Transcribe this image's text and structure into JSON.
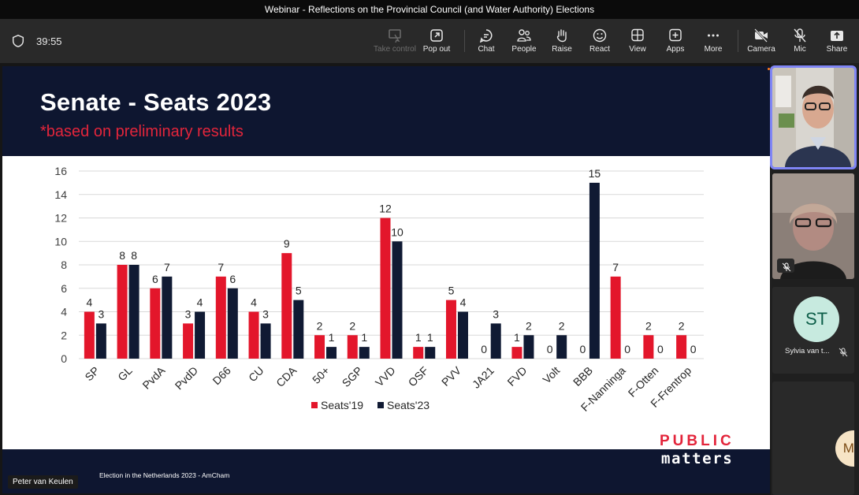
{
  "window": {
    "title": "Webinar - Reflections on the Provincial Council (and Water Authority) Elections"
  },
  "toolbar": {
    "timer": "39:55",
    "buttons": {
      "take_control": "Take control",
      "pop_out": "Pop out",
      "chat": "Chat",
      "people": "People",
      "raise": "Raise",
      "react": "React",
      "view": "View",
      "apps": "Apps",
      "more": "More",
      "camera": "Camera",
      "mic": "Mic",
      "share": "Share"
    },
    "icons": {
      "shield": "shield-icon",
      "take_control": "take-control-icon",
      "pop_out": "pop-out-icon",
      "chat": "chat-icon",
      "people": "people-icon",
      "raise": "hand-icon",
      "react": "smiley-icon",
      "view": "grid-icon",
      "apps": "plus-box-icon",
      "more": "ellipsis-icon",
      "camera": "camera-off-icon",
      "mic": "mic-off-icon",
      "share": "share-up-icon"
    }
  },
  "slide": {
    "title": "Senate - Seats 2023",
    "subtitle": "*based on preliminary results",
    "footer": "Election in the Netherlands 2023 - AmCham",
    "logo_line1": "PUBLIC",
    "logo_line2": "matters"
  },
  "chart_data": {
    "type": "bar",
    "categories": [
      "SP",
      "GL",
      "PvdA",
      "PvdD",
      "D66",
      "CU",
      "CDA",
      "50+",
      "SGP",
      "VVD",
      "OSF",
      "PVV",
      "JA21",
      "FVD",
      "Volt",
      "BBB",
      "F-Nanninga",
      "F-Otten",
      "F-Frentrop"
    ],
    "series": [
      {
        "name": "Seats'19",
        "color": "#e3162b",
        "values": [
          4,
          8,
          6,
          3,
          7,
          4,
          9,
          2,
          2,
          12,
          1,
          5,
          0,
          1,
          0,
          0,
          7,
          2,
          2
        ]
      },
      {
        "name": "Seats'23",
        "color": "#101a33",
        "values": [
          3,
          8,
          7,
          4,
          6,
          3,
          5,
          1,
          1,
          10,
          1,
          4,
          3,
          2,
          2,
          15,
          0,
          0,
          0
        ]
      }
    ],
    "yticks": [
      0,
      2,
      4,
      6,
      8,
      10,
      12,
      14,
      16
    ],
    "ylim": [
      0,
      16
    ],
    "grid": true,
    "legend": "bottom-center"
  },
  "presenter": {
    "name": "Peter van Keulen"
  },
  "participants": [
    {
      "initials": "ST",
      "name": "Sylvia van t..."
    },
    {
      "initials": "MH"
    }
  ]
}
